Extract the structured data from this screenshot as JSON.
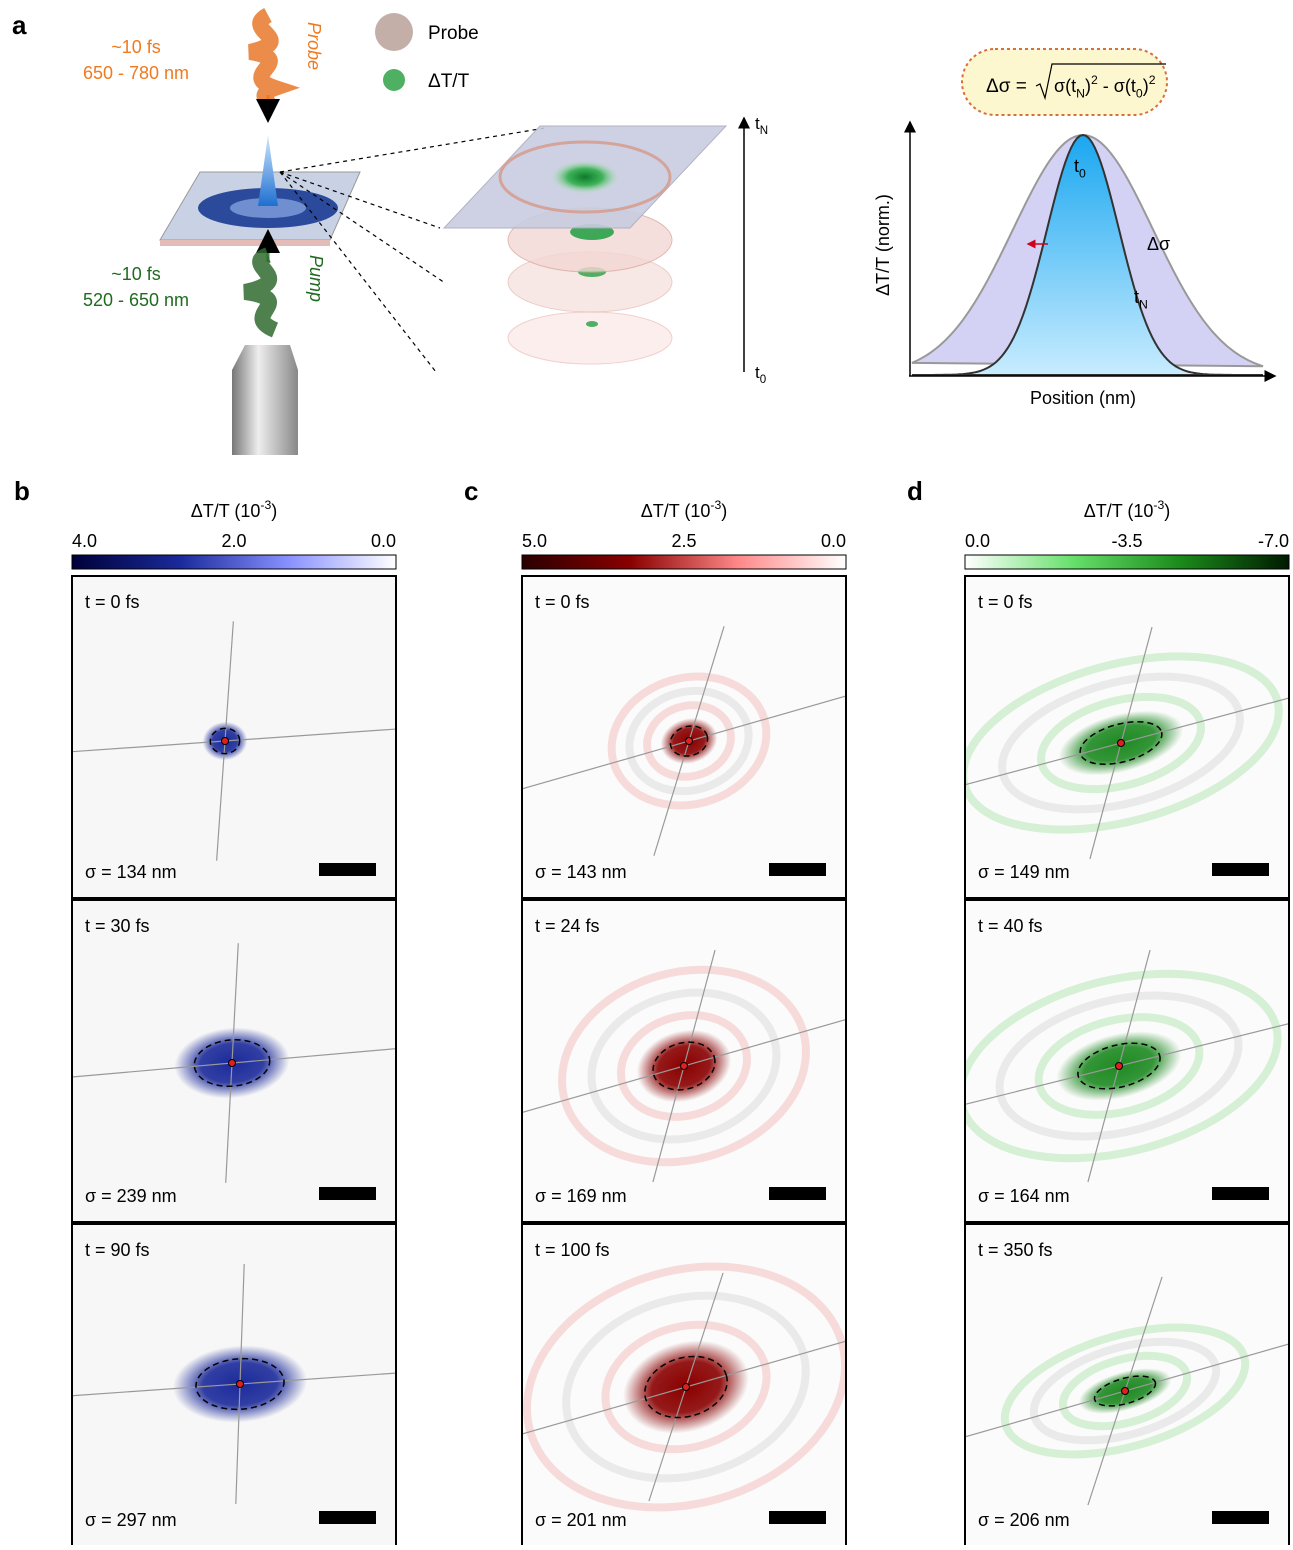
{
  "panel_a": {
    "letter": "a",
    "probe_pulse": {
      "duration": "~10 fs",
      "wavelength": "650 - 780 nm",
      "label": "Probe"
    },
    "pump_pulse": {
      "duration": "~10 fs",
      "wavelength": "520 - 650 nm",
      "label": "Pump"
    },
    "legend": [
      "Probe",
      "ΔT/T"
    ],
    "time_axis": {
      "top": {
        "base": "t",
        "sub": "N"
      },
      "bottom": {
        "base": "t",
        "sub": "0"
      }
    },
    "formula": {
      "lhs": "Δσ =",
      "terms": [
        {
          "text": "σ(t",
          "sub": "N",
          "close": ")",
          "power": "2"
        },
        {
          "text": " - σ(t",
          "sub": "0",
          "close": ")",
          "power": "2"
        }
      ]
    },
    "plot": {
      "y_label": "ΔT/T (norm.)",
      "x_label": "Position (nm)",
      "narrow_label": {
        "base": "t",
        "sub": "0"
      },
      "wide_label": {
        "base": "t",
        "sub": "N"
      },
      "delta_label": "Δσ"
    }
  },
  "panels": [
    {
      "letter": "b",
      "colorbar": {
        "title": "ΔT/T (10",
        "exponent": "-3",
        "title_end": ")",
        "ticks": [
          "4.0",
          "2.0",
          "0.0"
        ]
      },
      "frames": [
        {
          "time": "t = 0 fs",
          "sigma": "σ = 134 nm"
        },
        {
          "time": "t = 30 fs",
          "sigma": "σ = 239 nm"
        },
        {
          "time": "t = 90 fs",
          "sigma": "σ = 297 nm"
        }
      ]
    },
    {
      "letter": "c",
      "colorbar": {
        "title": "ΔT/T (10",
        "exponent": "-3",
        "title_end": ")",
        "ticks": [
          "5.0",
          "2.5",
          "0.0"
        ]
      },
      "frames": [
        {
          "time": "t = 0 fs",
          "sigma": "σ = 143 nm"
        },
        {
          "time": "t = 24 fs",
          "sigma": "σ = 169 nm"
        },
        {
          "time": "t = 100 fs",
          "sigma": "σ = 201 nm"
        }
      ]
    },
    {
      "letter": "d",
      "colorbar": {
        "title": "ΔT/T (10",
        "exponent": "-3",
        "title_end": ")",
        "ticks": [
          "0.0",
          "-3.5",
          "-7.0"
        ]
      },
      "frames": [
        {
          "time": "t = 0 fs",
          "sigma": "σ = 149 nm"
        },
        {
          "time": "t = 40 fs",
          "sigma": "σ = 164 nm"
        },
        {
          "time": "t = 350 fs",
          "sigma": "σ = 206 nm"
        }
      ]
    }
  ]
}
